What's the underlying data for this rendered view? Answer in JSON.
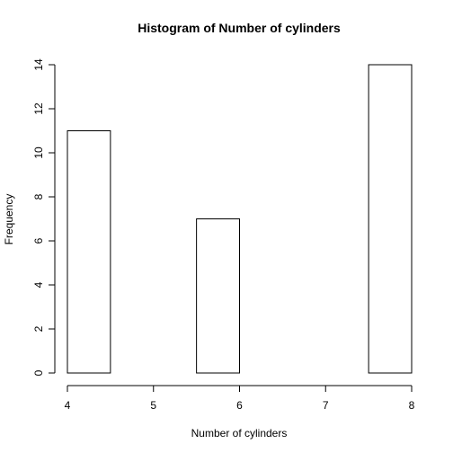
{
  "chart_data": {
    "type": "bar",
    "title": "Histogram of Number of cylinders",
    "xlabel": "Number of cylinders",
    "ylabel": "Frequency",
    "bins": [
      {
        "start": 4.0,
        "end": 4.5,
        "value": 11
      },
      {
        "start": 4.5,
        "end": 5.0,
        "value": 0
      },
      {
        "start": 5.0,
        "end": 5.5,
        "value": 0
      },
      {
        "start": 5.5,
        "end": 6.0,
        "value": 7
      },
      {
        "start": 6.0,
        "end": 6.5,
        "value": 0
      },
      {
        "start": 6.5,
        "end": 7.0,
        "value": 0
      },
      {
        "start": 7.0,
        "end": 7.5,
        "value": 0
      },
      {
        "start": 7.5,
        "end": 8.0,
        "value": 14
      }
    ],
    "xlim": [
      4,
      8
    ],
    "ylim": [
      0,
      14
    ],
    "xticks": [
      4,
      5,
      6,
      7,
      8
    ],
    "yticks": [
      0,
      2,
      4,
      6,
      8,
      10,
      12,
      14
    ],
    "grid": false,
    "bar_fill": "#ffffff",
    "bar_stroke": "#000000"
  }
}
